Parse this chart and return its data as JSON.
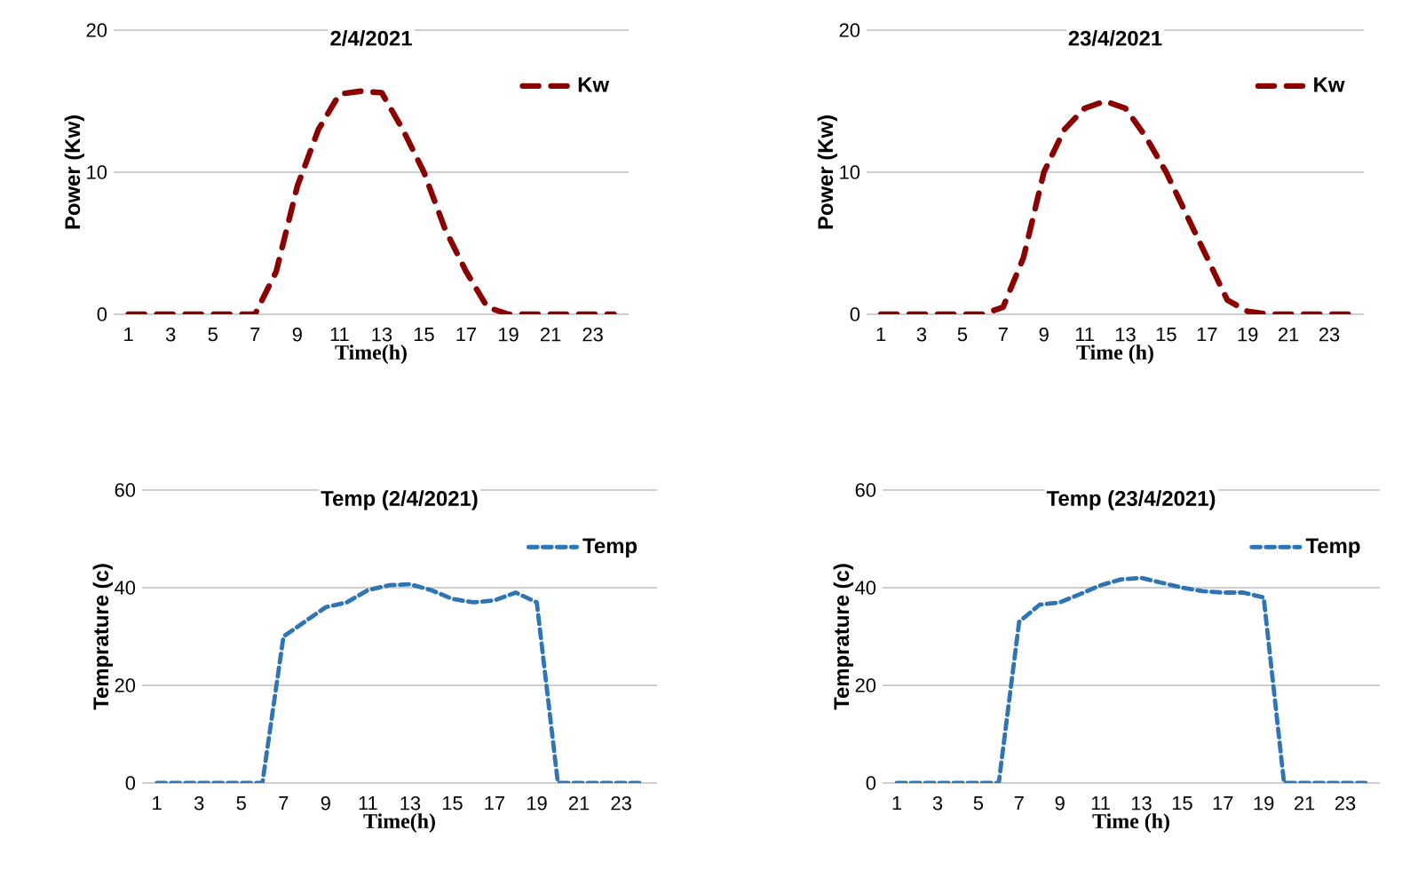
{
  "chart_data": [
    {
      "type": "line",
      "title": "2/4/2021",
      "xlabel": "Time(h)",
      "ylabel": "Power (Kw)",
      "categories": [
        "1",
        null,
        "3",
        null,
        "5",
        null,
        "7",
        null,
        "9",
        null,
        "11",
        null,
        "13",
        null,
        "15",
        null,
        "17",
        null,
        "19",
        null,
        "21",
        null,
        "23",
        null
      ],
      "ylim": [
        0,
        20
      ],
      "yticks": [
        0,
        10,
        20
      ],
      "grid": "y",
      "legend": "top right",
      "line_style": "dashed",
      "series": [
        {
          "name": "Kw",
          "color": "#8b0000",
          "values": [
            0,
            0,
            0,
            0,
            0,
            0,
            0,
            3,
            9,
            13,
            15.5,
            15.7,
            15.6,
            13,
            10,
            6,
            3,
            0.5,
            0,
            0,
            0,
            0,
            0,
            0
          ]
        }
      ]
    },
    {
      "type": "line",
      "title": "23/4/2021",
      "xlabel": "Time (h)",
      "ylabel": "Power (Kw)",
      "categories": [
        "1",
        null,
        "3",
        null,
        "5",
        null,
        "7",
        null,
        "9",
        null,
        "11",
        null,
        "13",
        null,
        "15",
        null,
        "17",
        null,
        "19",
        null,
        "21",
        null,
        "23",
        null
      ],
      "ylim": [
        0,
        20
      ],
      "yticks": [
        0,
        10,
        20
      ],
      "grid": "y",
      "legend": "top right",
      "line_style": "dashed",
      "series": [
        {
          "name": "Kw",
          "color": "#8b0000",
          "values": [
            0,
            0,
            0,
            0,
            0,
            0,
            0.5,
            4,
            10,
            13,
            14.5,
            15,
            14.5,
            12.5,
            10,
            7,
            4,
            1,
            0.2,
            0,
            0,
            0,
            0,
            0
          ]
        }
      ]
    },
    {
      "type": "line",
      "title": "Temp (2/4/2021)",
      "xlabel": "Time(h)",
      "ylabel": "Temprature (c)",
      "categories": [
        "1",
        null,
        "3",
        null,
        "5",
        null,
        "7",
        null,
        "9",
        null,
        "11",
        null,
        "13",
        null,
        "15",
        null,
        "17",
        null,
        "19",
        null,
        "21",
        null,
        "23",
        null
      ],
      "ylim": [
        0,
        60
      ],
      "yticks": [
        0,
        20,
        40,
        60
      ],
      "grid": "y",
      "legend": "top right",
      "line_style": "dashed",
      "series": [
        {
          "name": "Temp",
          "color": "#2e75b6",
          "values": [
            0,
            0,
            0,
            0,
            0,
            0,
            30,
            33,
            36,
            37,
            39.5,
            40.5,
            40.7,
            39.5,
            37.7,
            37,
            37.4,
            39,
            37,
            0,
            0,
            0,
            0,
            0
          ]
        }
      ]
    },
    {
      "type": "line",
      "title": "Temp (23/4/2021)",
      "xlabel": "Time (h)",
      "ylabel": "Temprature (c)",
      "categories": [
        "1",
        null,
        "3",
        null,
        "5",
        null,
        "7",
        null,
        "9",
        null,
        "11",
        null,
        "13",
        null,
        "15",
        null,
        "17",
        null,
        "19",
        null,
        "21",
        null,
        "23",
        null
      ],
      "ylim": [
        0,
        60
      ],
      "yticks": [
        0,
        20,
        40,
        60
      ],
      "grid": "y",
      "legend": "top right",
      "line_style": "dashed",
      "series": [
        {
          "name": "Temp",
          "color": "#2e75b6",
          "values": [
            0,
            0,
            0,
            0,
            0,
            0,
            33,
            36.5,
            37,
            38.7,
            40.5,
            41.7,
            42,
            41,
            40,
            39.3,
            39,
            39,
            38,
            0,
            0,
            0,
            0,
            0
          ]
        }
      ]
    }
  ]
}
